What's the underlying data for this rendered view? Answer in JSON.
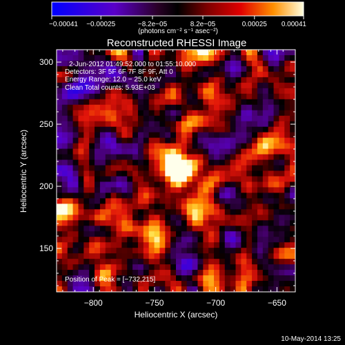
{
  "chart_data": {
    "type": "heatmap",
    "title": "Reconstructed RHESSI Image",
    "xlabel": "Heliocentric X (arcsec)",
    "ylabel": "Heliocentric Y (arcsec)",
    "xlim": [
      -830,
      -635
    ],
    "ylim": [
      115,
      310
    ],
    "x_ticks": [
      {
        "value": -800,
        "label": "−800"
      },
      {
        "value": -750,
        "label": "−750"
      },
      {
        "value": -700,
        "label": "−700"
      },
      {
        "value": -650,
        "label": "−650"
      }
    ],
    "y_ticks": [
      {
        "value": 150,
        "label": "150"
      },
      {
        "value": 200,
        "label": "200"
      },
      {
        "value": 250,
        "label": "250"
      },
      {
        "value": 300,
        "label": "300"
      }
    ],
    "annotations": {
      "time_range": "2-Jun-2012 01:49:52.000 to 01:55:10.000",
      "detectors": "Detectors: 3F 5F 6F 7F 8F 9F, Att 0",
      "energy": "Energy Range: 12.0 − 25.0 keV",
      "clean": "Clean    Total counts: 5.93E+03",
      "peak": "Position of Peak = [−732,215]"
    },
    "peak": {
      "x": -732,
      "y": 215
    },
    "colorbar": {
      "min": -0.00041,
      "max": 0.00041,
      "ticks": [
        {
          "value": -0.00041,
          "label": "−0.00041"
        },
        {
          "value": -0.00025,
          "label": "−0.00025"
        },
        {
          "value": -8.2e-05,
          "label": "−8.2e−05"
        },
        {
          "value": 8.2e-05,
          "label": "8.2e−05"
        },
        {
          "value": 0.00025,
          "label": "0.00025"
        },
        {
          "value": 0.00041,
          "label": "0.00041"
        }
      ],
      "unit_label": "(photons cm⁻² s⁻¹ asec⁻²)"
    },
    "footer": "10-May-2014 13:25"
  }
}
